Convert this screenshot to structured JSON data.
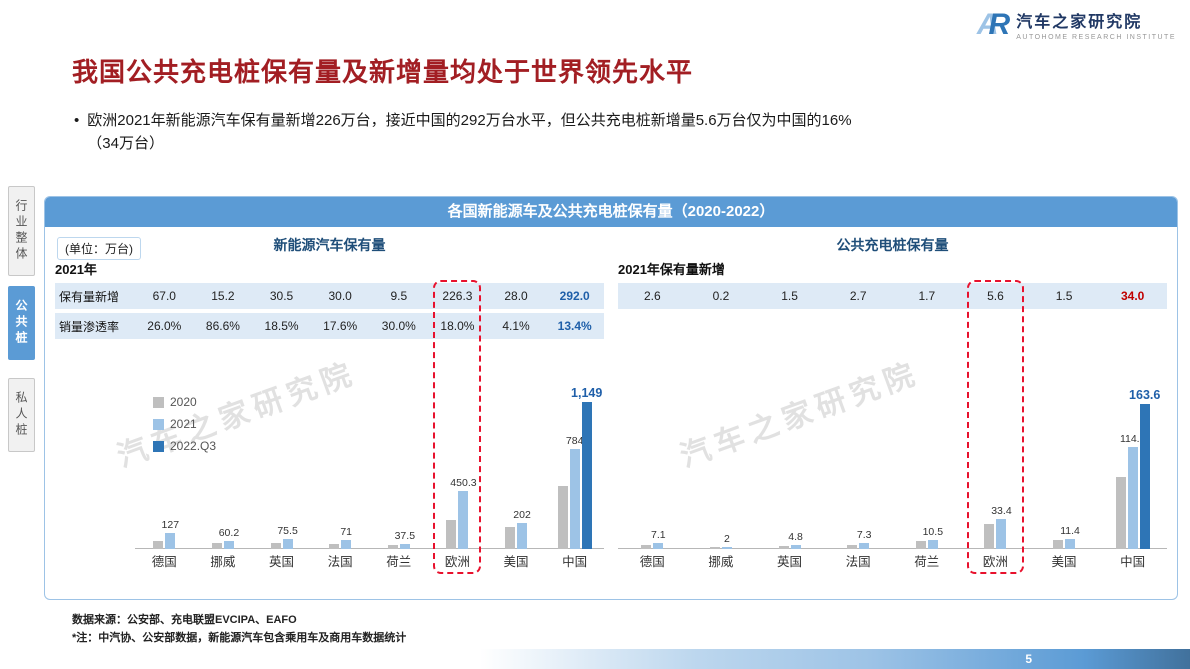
{
  "logo": {
    "mark_a": "A",
    "mark_r": "R",
    "name": "汽车之家研究院",
    "subtitle": "AUTOHOME RESEARCH INSTITUTE"
  },
  "page": {
    "title": "我国公共充电桩保有量及新增量均处于世界领先水平",
    "bullet_line1": "欧洲2021年新能源汽车保有量新增226万台，接近中国的292万台水平，但公共充电桩新增量5.6万台仅为中国的16%",
    "bullet_line2": "（34万台）",
    "source_line1": "数据来源：公安部、充电联盟EVCIPA、EAFO",
    "source_line2": "*注：中汽协、公安部数据，新能源汽车包含乘用车及商用车数据统计",
    "page_number": "5"
  },
  "sidebar": {
    "items": [
      {
        "label": "行业整体",
        "active": false
      },
      {
        "label": "公共桩",
        "active": true
      },
      {
        "label": "私人桩",
        "active": false
      }
    ]
  },
  "panel": {
    "header": "各国新能源车及公共充电桩保有量（2020-2022）",
    "unit": "(单位：万台)",
    "watermark": "汽车之家研究院"
  },
  "chart_data": [
    {
      "type": "bar",
      "title": "新能源汽车保有量",
      "table_caption": "2021年",
      "categories": [
        "德国",
        "挪威",
        "英国",
        "法国",
        "荷兰",
        "欧洲",
        "美国",
        "中国"
      ],
      "table_rows": [
        {
          "label": "保有量新增",
          "values": [
            "67.0",
            "15.2",
            "30.5",
            "30.0",
            "9.5",
            "226.3",
            "28.0",
            "292.0"
          ],
          "last_color": "#1F5FA9"
        },
        {
          "label": "销量渗透率",
          "values": [
            "26.0%",
            "86.6%",
            "18.5%",
            "17.6%",
            "30.0%",
            "18.0%",
            "4.1%",
            "13.4%"
          ],
          "last_color": "#1F5FA9"
        }
      ],
      "legend": [
        "2020",
        "2021",
        "2022.Q3"
      ],
      "series": [
        {
          "name": "2020",
          "color": "#BFBFBF",
          "values": [
            60,
            45,
            45,
            41,
            28,
            224,
            174,
            492
          ],
          "labels": [
            "",
            "",
            "",
            "",
            "",
            "",
            "",
            ""
          ]
        },
        {
          "name": "2021",
          "color": "#9DC3E6",
          "values": [
            127,
            60.2,
            75.5,
            71,
            37.5,
            450.3,
            202,
            784
          ],
          "labels": [
            "127",
            "60.2",
            "75.5",
            "71",
            "37.5",
            "450.3",
            "202",
            "784"
          ]
        },
        {
          "name": "2022.Q3",
          "color": "#2E75B6",
          "values": [
            null,
            null,
            null,
            null,
            null,
            null,
            null,
            1149
          ],
          "labels": [
            "",
            "",
            "",
            "",
            "",
            "",
            "",
            "1,149"
          ],
          "bold_labels": true
        }
      ],
      "ylim": [
        0,
        1250
      ],
      "bold_label_color": "#1F5FA9",
      "highlight_category": "欧洲",
      "highlight_color": "#E8112D",
      "grid": false,
      "legend_position": "upper-left"
    },
    {
      "type": "bar",
      "title": "公共充电桩保有量",
      "table_caption": "2021年保有量新增",
      "categories": [
        "德国",
        "挪威",
        "英国",
        "法国",
        "荷兰",
        "欧洲",
        "美国",
        "中国"
      ],
      "table_rows": [
        {
          "values": [
            "2.6",
            "0.2",
            "1.5",
            "2.7",
            "1.7",
            "5.6",
            "1.5",
            "34.0"
          ],
          "last_color": "#C00000"
        }
      ],
      "series": [
        {
          "name": "2020",
          "color": "#BFBFBF",
          "values": [
            4.5,
            1.8,
            3.3,
            4.6,
            8.8,
            27.8,
            9.9,
            80.7
          ],
          "labels": [
            "",
            "",
            "",
            "",
            "",
            "",
            "",
            ""
          ]
        },
        {
          "name": "2021",
          "color": "#9DC3E6",
          "values": [
            7.1,
            2,
            4.8,
            7.3,
            10.5,
            33.4,
            11.4,
            114.7
          ],
          "labels": [
            "7.1",
            "2",
            "4.8",
            "7.3",
            "10.5",
            "33.4",
            "11.4",
            "114.7"
          ]
        },
        {
          "name": "2022.Q3",
          "color": "#2E75B6",
          "values": [
            null,
            null,
            null,
            null,
            null,
            null,
            null,
            163.6
          ],
          "labels": [
            "",
            "",
            "",
            "",
            "",
            "",
            "",
            "163.6"
          ],
          "bold_labels": true
        }
      ],
      "ylim": [
        0,
        180
      ],
      "bold_label_color": "#1F5FA9",
      "highlight_category": "欧洲",
      "highlight_color": "#E8112D",
      "grid": false,
      "legend_position": "none"
    }
  ]
}
